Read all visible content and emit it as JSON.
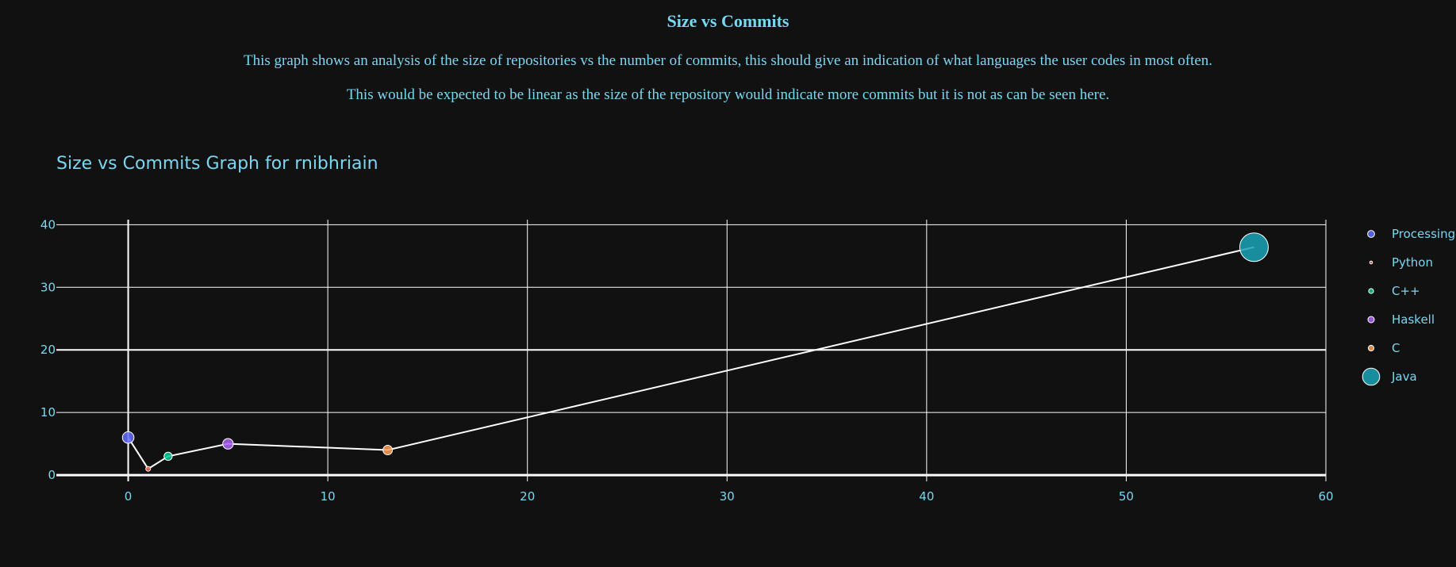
{
  "page": {
    "title": "Size vs Commits",
    "description_1": "This graph shows an analysis of the size of repositories vs the number of commits, this should give an indication of what languages the user codes in most often.",
    "description_2": "This would be expected to be linear as the size of the repository would indicate more commits but it is not as can be seen here."
  },
  "theme": {
    "background": "#111111",
    "text_color": "#7ad7f0",
    "grid_color": "#ffffff",
    "line_color": "#ffffff"
  },
  "chart_data": {
    "type": "scatter",
    "title": "Size vs Commits Graph for rnibhriain",
    "xlabel": "",
    "ylabel": "",
    "xlim": [
      -3.6,
      60
    ],
    "ylim": [
      -1,
      40.8
    ],
    "xticks": [
      0,
      10,
      20,
      30,
      40,
      50,
      60
    ],
    "yticks": [
      0,
      10,
      20,
      30,
      40
    ],
    "grid": true,
    "legend_position": "right",
    "connecting_line": true,
    "series": [
      {
        "name": "Processing",
        "x": 0,
        "y": 6,
        "size": 6,
        "color": "#636efa"
      },
      {
        "name": "Python",
        "x": 1,
        "y": 1,
        "size": 1,
        "color": "#ef553b"
      },
      {
        "name": "C++",
        "x": 2,
        "y": 3,
        "size": 3,
        "color": "#00cc96"
      },
      {
        "name": "Haskell",
        "x": 5,
        "y": 5,
        "size": 5,
        "color": "#ab63fa"
      },
      {
        "name": "C",
        "x": 13,
        "y": 4,
        "size": 4,
        "color": "#ffa15a"
      },
      {
        "name": "Java",
        "x": 56.4,
        "y": 36.4,
        "size": 36.4,
        "color": "#19a3b6"
      }
    ]
  }
}
